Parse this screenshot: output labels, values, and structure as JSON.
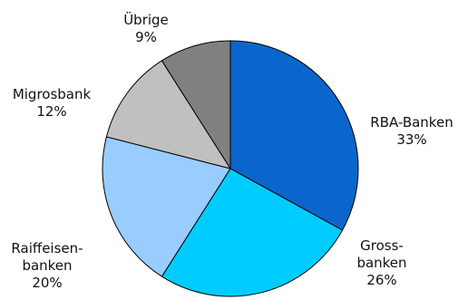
{
  "chart_data": {
    "type": "pie",
    "title": "",
    "start": "top",
    "direction": "clockwise",
    "slices": [
      {
        "label_lines": [
          "RBA-Banken"
        ],
        "value": 33,
        "value_text": "33%",
        "color": "#0a66cc"
      },
      {
        "label_lines": [
          "Gross-",
          "banken"
        ],
        "value": 26,
        "value_text": "26%",
        "color": "#00ccff"
      },
      {
        "label_lines": [
          "Raiffeisen-",
          "banken"
        ],
        "value": 20,
        "value_text": "20%",
        "color": "#99ccff"
      },
      {
        "label_lines": [
          "Migrosbank"
        ],
        "value": 12,
        "value_text": "12%",
        "color": "#c0c0c0"
      },
      {
        "label_lines": [
          "Übrige"
        ],
        "value": 9,
        "value_text": "9%",
        "color": "#808080"
      }
    ]
  }
}
